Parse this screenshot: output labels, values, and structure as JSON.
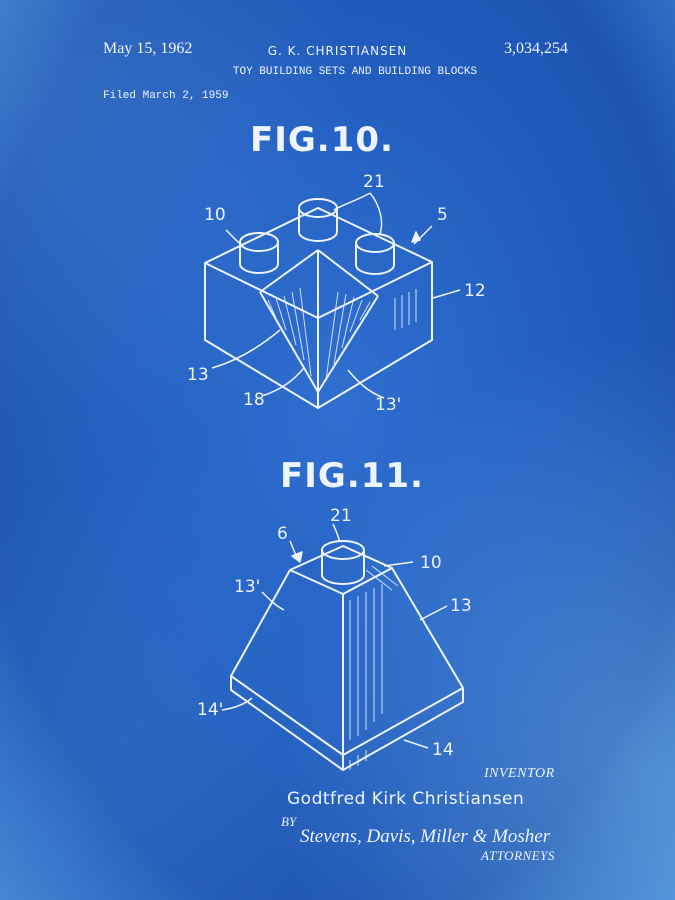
{
  "header": {
    "date": "May 15, 1962",
    "inventor": "G. K. CHRISTIANSEN",
    "patent_number": "3,034,254",
    "title": "TOY BUILDING SETS AND BUILDING BLOCKS",
    "filed": "Filed March 2, 1959"
  },
  "figures": [
    {
      "label": "FIG.10.",
      "refs": [
        "10",
        "21",
        "5",
        "12",
        "13",
        "18",
        "13'"
      ]
    },
    {
      "label": "FIG.11.",
      "refs": [
        "21",
        "6",
        "10",
        "13'",
        "13",
        "14'",
        "14"
      ]
    }
  ],
  "footer": {
    "inventor_label": "INVENTOR",
    "inventor_full_name": "Godtfred Kirk Christiansen",
    "by_label": "BY",
    "signature": "Stevens, Davis, Miller & Mosher",
    "attorneys_label": "ATTORNEYS"
  },
  "colors": {
    "blueprint_background": "#2461c3",
    "line_color": "#eef4ff"
  }
}
